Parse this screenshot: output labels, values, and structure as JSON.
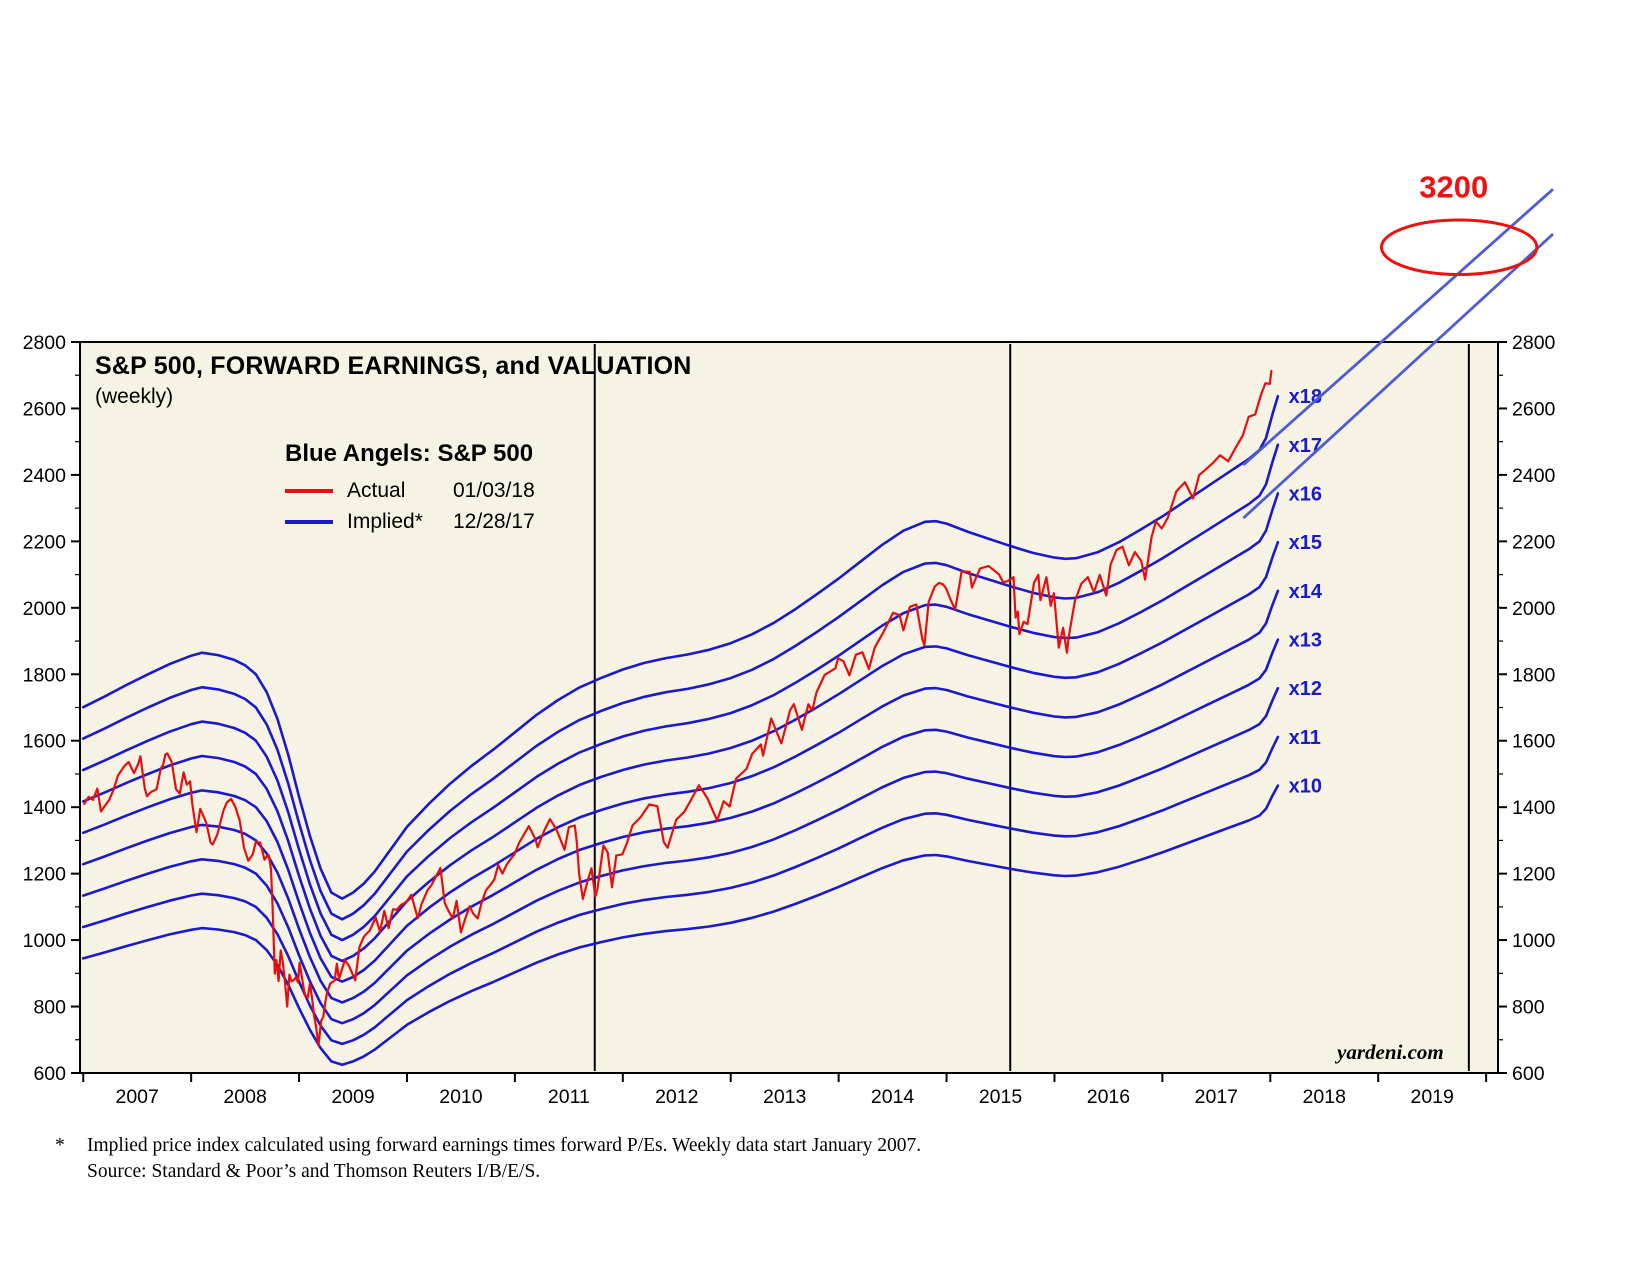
{
  "title": "S&P 500, FORWARD EARNINGS, and VALUATION",
  "subtitle": "(weekly)",
  "legend": {
    "heading": "Blue Angels: S&P 500",
    "series": [
      {
        "label": "Actual",
        "date": "01/03/18",
        "color": "#e60f0f"
      },
      {
        "label": "Implied*",
        "date": "12/28/17",
        "color": "#1a1acc"
      }
    ]
  },
  "watermark": "yardeni.com",
  "footnote": {
    "marker": "*",
    "line1": "Implied price index calculated using forward earnings times forward P/Es. Weekly data start January 2007.",
    "line2": "Source: Standard & Poor’s and Thomson Reuters I/B/E/S."
  },
  "chart_data": {
    "type": "line",
    "title": "S&P 500, FORWARD EARNINGS, and VALUATION (weekly)",
    "x_axis": {
      "range": [
        2006.97,
        2020.11
      ],
      "year_labels": [
        2007,
        2008,
        2009,
        2010,
        2011,
        2012,
        2013,
        2014,
        2015,
        2016,
        2017,
        2018,
        2019
      ]
    },
    "y_axis": {
      "range": [
        600,
        2800
      ],
      "tick_step": 200,
      "ticks": [
        600,
        800,
        1000,
        1200,
        1400,
        1600,
        1800,
        2000,
        2200,
        2400,
        2600,
        2800
      ]
    },
    "grid": false,
    "legend_position": "upper-left-inside",
    "vertical_reference_lines": [
      2011.74,
      2015.59,
      2019.84
    ],
    "multiple_label_prefix": "x",
    "multiples": [
      10,
      11,
      12,
      13,
      14,
      15,
      16,
      17,
      18
    ],
    "forward_earnings": [
      [
        2007.0,
        94.5
      ],
      [
        2007.2,
        96.3
      ],
      [
        2007.4,
        98.2
      ],
      [
        2007.6,
        100.0
      ],
      [
        2007.8,
        101.7
      ],
      [
        2008.0,
        103.1
      ],
      [
        2008.1,
        103.6
      ],
      [
        2008.25,
        103.2
      ],
      [
        2008.4,
        102.4
      ],
      [
        2008.5,
        101.5
      ],
      [
        2008.6,
        100.0
      ],
      [
        2008.7,
        97.0
      ],
      [
        2008.8,
        92.5
      ],
      [
        2008.9,
        86.5
      ],
      [
        2009.0,
        79.5
      ],
      [
        2009.1,
        73.0
      ],
      [
        2009.2,
        67.5
      ],
      [
        2009.3,
        63.5
      ],
      [
        2009.4,
        62.5
      ],
      [
        2009.5,
        63.5
      ],
      [
        2009.6,
        65.0
      ],
      [
        2009.7,
        67.0
      ],
      [
        2009.8,
        69.5
      ],
      [
        2009.9,
        72.0
      ],
      [
        2010.0,
        74.5
      ],
      [
        2010.2,
        78.3
      ],
      [
        2010.4,
        81.7
      ],
      [
        2010.6,
        84.7
      ],
      [
        2010.8,
        87.4
      ],
      [
        2011.0,
        90.3
      ],
      [
        2011.2,
        93.2
      ],
      [
        2011.4,
        95.7
      ],
      [
        2011.6,
        97.8
      ],
      [
        2011.8,
        99.4
      ],
      [
        2012.0,
        100.8
      ],
      [
        2012.2,
        101.9
      ],
      [
        2012.4,
        102.7
      ],
      [
        2012.6,
        103.3
      ],
      [
        2012.8,
        104.1
      ],
      [
        2013.0,
        105.2
      ],
      [
        2013.2,
        106.7
      ],
      [
        2013.4,
        108.6
      ],
      [
        2013.6,
        110.9
      ],
      [
        2013.8,
        113.4
      ],
      [
        2014.0,
        116.0
      ],
      [
        2014.2,
        118.8
      ],
      [
        2014.4,
        121.6
      ],
      [
        2014.6,
        124.0
      ],
      [
        2014.8,
        125.5
      ],
      [
        2014.9,
        125.6
      ],
      [
        2015.0,
        125.2
      ],
      [
        2015.2,
        123.8
      ],
      [
        2015.4,
        122.6
      ],
      [
        2015.6,
        121.4
      ],
      [
        2015.8,
        120.3
      ],
      [
        2016.0,
        119.5
      ],
      [
        2016.1,
        119.3
      ],
      [
        2016.2,
        119.4
      ],
      [
        2016.4,
        120.4
      ],
      [
        2016.6,
        122.1
      ],
      [
        2016.8,
        124.2
      ],
      [
        2017.0,
        126.4
      ],
      [
        2017.2,
        128.8
      ],
      [
        2017.4,
        131.2
      ],
      [
        2017.6,
        133.6
      ],
      [
        2017.8,
        136.0
      ],
      [
        2017.9,
        137.5
      ],
      [
        2017.96,
        139.5
      ],
      [
        2018.02,
        143.5
      ],
      [
        2018.07,
        146.5
      ]
    ],
    "actual_sp500": [
      [
        2007.01,
        1410
      ],
      [
        2007.05,
        1431
      ],
      [
        2007.09,
        1422
      ],
      [
        2007.13,
        1456
      ],
      [
        2007.165,
        1387
      ],
      [
        2007.2,
        1404
      ],
      [
        2007.24,
        1421
      ],
      [
        2007.28,
        1452
      ],
      [
        2007.32,
        1494
      ],
      [
        2007.38,
        1523
      ],
      [
        2007.42,
        1536
      ],
      [
        2007.47,
        1503
      ],
      [
        2007.51,
        1531
      ],
      [
        2007.53,
        1553
      ],
      [
        2007.57,
        1458
      ],
      [
        2007.59,
        1433
      ],
      [
        2007.63,
        1446
      ],
      [
        2007.68,
        1454
      ],
      [
        2007.72,
        1517
      ],
      [
        2007.74,
        1527
      ],
      [
        2007.76,
        1558
      ],
      [
        2007.78,
        1562
      ],
      [
        2007.82,
        1536
      ],
      [
        2007.86,
        1454
      ],
      [
        2007.895,
        1441
      ],
      [
        2007.93,
        1505
      ],
      [
        2007.96,
        1468
      ],
      [
        2007.99,
        1478
      ],
      [
        2008.01,
        1411
      ],
      [
        2008.05,
        1325
      ],
      [
        2008.085,
        1395
      ],
      [
        2008.14,
        1353
      ],
      [
        2008.18,
        1293
      ],
      [
        2008.2,
        1288
      ],
      [
        2008.24,
        1316
      ],
      [
        2008.3,
        1390
      ],
      [
        2008.33,
        1414
      ],
      [
        2008.37,
        1425
      ],
      [
        2008.41,
        1400
      ],
      [
        2008.45,
        1360
      ],
      [
        2008.49,
        1278
      ],
      [
        2008.53,
        1239
      ],
      [
        2008.57,
        1258
      ],
      [
        2008.6,
        1296
      ],
      [
        2008.64,
        1293
      ],
      [
        2008.68,
        1242
      ],
      [
        2008.7,
        1252
      ],
      [
        2008.72,
        1255
      ],
      [
        2008.74,
        1213
      ],
      [
        2008.755,
        1099
      ],
      [
        2008.775,
        899
      ],
      [
        2008.79,
        940
      ],
      [
        2008.81,
        877
      ],
      [
        2008.83,
        969
      ],
      [
        2008.85,
        931
      ],
      [
        2008.87,
        873
      ],
      [
        2008.89,
        800
      ],
      [
        2008.91,
        896
      ],
      [
        2008.93,
        876
      ],
      [
        2008.95,
        880
      ],
      [
        2008.97,
        888
      ],
      [
        2008.99,
        873
      ],
      [
        2009.005,
        932
      ],
      [
        2009.025,
        890
      ],
      [
        2009.045,
        850
      ],
      [
        2009.06,
        832
      ],
      [
        2009.08,
        826
      ],
      [
        2009.1,
        869
      ],
      [
        2009.12,
        827
      ],
      [
        2009.14,
        770
      ],
      [
        2009.16,
        735
      ],
      [
        2009.18,
        683
      ],
      [
        2009.205,
        757
      ],
      [
        2009.225,
        769
      ],
      [
        2009.245,
        816
      ],
      [
        2009.26,
        842
      ],
      [
        2009.29,
        870
      ],
      [
        2009.33,
        878
      ],
      [
        2009.35,
        929
      ],
      [
        2009.37,
        883
      ],
      [
        2009.425,
        940
      ],
      [
        2009.465,
        921
      ],
      [
        2009.52,
        879
      ],
      [
        2009.56,
        979
      ],
      [
        2009.6,
        1010
      ],
      [
        2009.655,
        1029
      ],
      [
        2009.71,
        1068
      ],
      [
        2009.75,
        1025
      ],
      [
        2009.79,
        1088
      ],
      [
        2009.83,
        1036
      ],
      [
        2009.87,
        1093
      ],
      [
        2009.905,
        1091
      ],
      [
        2009.945,
        1106
      ],
      [
        2009.995,
        1115
      ],
      [
        2010.04,
        1136
      ],
      [
        2010.1,
        1066
      ],
      [
        2010.135,
        1109
      ],
      [
        2010.19,
        1150
      ],
      [
        2010.23,
        1167
      ],
      [
        2010.31,
        1217
      ],
      [
        2010.35,
        1111
      ],
      [
        2010.385,
        1088
      ],
      [
        2010.425,
        1065
      ],
      [
        2010.46,
        1118
      ],
      [
        2010.5,
        1023
      ],
      [
        2010.54,
        1065
      ],
      [
        2010.58,
        1102
      ],
      [
        2010.615,
        1079
      ],
      [
        2010.655,
        1065
      ],
      [
        2010.69,
        1110
      ],
      [
        2010.73,
        1149
      ],
      [
        2010.77,
        1165
      ],
      [
        2010.81,
        1183
      ],
      [
        2010.845,
        1226
      ],
      [
        2010.885,
        1200
      ],
      [
        2010.92,
        1225
      ],
      [
        2010.96,
        1244
      ],
      [
        2010.995,
        1258
      ],
      [
        2011.04,
        1293
      ],
      [
        2011.13,
        1343
      ],
      [
        2011.19,
        1304
      ],
      [
        2011.21,
        1279
      ],
      [
        2011.27,
        1328
      ],
      [
        2011.325,
        1364
      ],
      [
        2011.385,
        1333
      ],
      [
        2011.46,
        1272
      ],
      [
        2011.5,
        1340
      ],
      [
        2011.555,
        1345
      ],
      [
        2011.575,
        1292
      ],
      [
        2011.595,
        1199
      ],
      [
        2011.63,
        1124
      ],
      [
        2011.67,
        1174
      ],
      [
        2011.71,
        1216
      ],
      [
        2011.745,
        1131
      ],
      [
        2011.765,
        1155
      ],
      [
        2011.82,
        1285
      ],
      [
        2011.86,
        1264
      ],
      [
        2011.9,
        1159
      ],
      [
        2011.94,
        1255
      ],
      [
        2011.995,
        1258
      ],
      [
        2012.035,
        1289
      ],
      [
        2012.09,
        1345
      ],
      [
        2012.165,
        1370
      ],
      [
        2012.245,
        1408
      ],
      [
        2012.32,
        1403
      ],
      [
        2012.38,
        1295
      ],
      [
        2012.415,
        1278
      ],
      [
        2012.495,
        1362
      ],
      [
        2012.57,
        1386
      ],
      [
        2012.625,
        1418
      ],
      [
        2012.705,
        1466
      ],
      [
        2012.78,
        1429
      ],
      [
        2012.875,
        1360
      ],
      [
        2012.935,
        1418
      ],
      [
        2012.99,
        1402
      ],
      [
        2013.05,
        1486
      ],
      [
        2013.145,
        1515
      ],
      [
        2013.2,
        1561
      ],
      [
        2013.28,
        1589
      ],
      [
        2013.3,
        1555
      ],
      [
        2013.375,
        1667
      ],
      [
        2013.47,
        1592
      ],
      [
        2013.55,
        1692
      ],
      [
        2013.585,
        1710
      ],
      [
        2013.66,
        1633
      ],
      [
        2013.72,
        1710
      ],
      [
        2013.755,
        1691
      ],
      [
        2013.795,
        1745
      ],
      [
        2013.87,
        1798
      ],
      [
        2013.91,
        1806
      ],
      [
        2013.97,
        1818
      ],
      [
        2013.995,
        1848
      ],
      [
        2014.045,
        1839
      ],
      [
        2014.1,
        1797
      ],
      [
        2014.16,
        1859
      ],
      [
        2014.22,
        1866
      ],
      [
        2014.28,
        1816
      ],
      [
        2014.335,
        1881
      ],
      [
        2014.41,
        1924
      ],
      [
        2014.47,
        1963
      ],
      [
        2014.505,
        1985
      ],
      [
        2014.565,
        1978
      ],
      [
        2014.6,
        1932
      ],
      [
        2014.66,
        2003
      ],
      [
        2014.72,
        2010
      ],
      [
        2014.775,
        1906
      ],
      [
        2014.795,
        1887
      ],
      [
        2014.835,
        2018
      ],
      [
        2014.89,
        2064
      ],
      [
        2014.93,
        2075
      ],
      [
        2014.965,
        2071
      ],
      [
        2014.995,
        2059
      ],
      [
        2015.045,
        2019
      ],
      [
        2015.08,
        1995
      ],
      [
        2015.14,
        2110
      ],
      [
        2015.215,
        2108
      ],
      [
        2015.235,
        2061
      ],
      [
        2015.31,
        2118
      ],
      [
        2015.39,
        2126
      ],
      [
        2015.485,
        2101
      ],
      [
        2015.525,
        2077
      ],
      [
        2015.565,
        2080
      ],
      [
        2015.62,
        2092
      ],
      [
        2015.64,
        1971
      ],
      [
        2015.66,
        1989
      ],
      [
        2015.675,
        1921
      ],
      [
        2015.715,
        1958
      ],
      [
        2015.75,
        1951
      ],
      [
        2015.81,
        2075
      ],
      [
        2015.85,
        2099
      ],
      [
        2015.87,
        2023
      ],
      [
        2015.925,
        2092
      ],
      [
        2015.965,
        2006
      ],
      [
        2015.995,
        2044
      ],
      [
        2016.04,
        1880
      ],
      [
        2016.08,
        1940
      ],
      [
        2016.115,
        1865
      ],
      [
        2016.135,
        1918
      ],
      [
        2016.19,
        2022
      ],
      [
        2016.25,
        2073
      ],
      [
        2016.31,
        2092
      ],
      [
        2016.365,
        2047
      ],
      [
        2016.42,
        2099
      ],
      [
        2016.48,
        2037
      ],
      [
        2016.52,
        2130
      ],
      [
        2016.575,
        2174
      ],
      [
        2016.63,
        2184
      ],
      [
        2016.69,
        2128
      ],
      [
        2016.745,
        2168
      ],
      [
        2016.805,
        2141
      ],
      [
        2016.84,
        2085
      ],
      [
        2016.9,
        2213
      ],
      [
        2016.94,
        2260
      ],
      [
        2016.995,
        2239
      ],
      [
        2017.05,
        2271
      ],
      [
        2017.13,
        2351
      ],
      [
        2017.21,
        2378
      ],
      [
        2017.285,
        2329
      ],
      [
        2017.34,
        2399
      ],
      [
        2017.4,
        2416
      ],
      [
        2017.475,
        2438
      ],
      [
        2017.535,
        2459
      ],
      [
        2017.61,
        2441
      ],
      [
        2017.67,
        2477
      ],
      [
        2017.745,
        2519
      ],
      [
        2017.8,
        2575
      ],
      [
        2017.86,
        2582
      ],
      [
        2017.915,
        2642
      ],
      [
        2017.955,
        2676
      ],
      [
        2017.995,
        2674
      ],
      [
        2018.01,
        2713
      ]
    ],
    "projection_lines": [
      {
        "from": [
          2017.75,
          2430
        ],
        "to": [
          2020.62,
          3260
        ]
      },
      {
        "from": [
          2017.75,
          2270
        ],
        "to": [
          2020.62,
          3125
        ]
      }
    ],
    "forecast_ellipse": {
      "center": [
        2019.75,
        3085
      ],
      "rx_years": 0.72,
      "ry_value": 82
    },
    "forecast_label": {
      "text": "3200",
      "x": 2019.7,
      "y": 3235
    },
    "colors": {
      "actual": "#e60f0f",
      "implied": "#1a1acc",
      "projection": "#4d5cd4",
      "annotation": "#ee1111",
      "plot_bg": "#f7f3e4",
      "axis": "#000000"
    }
  }
}
